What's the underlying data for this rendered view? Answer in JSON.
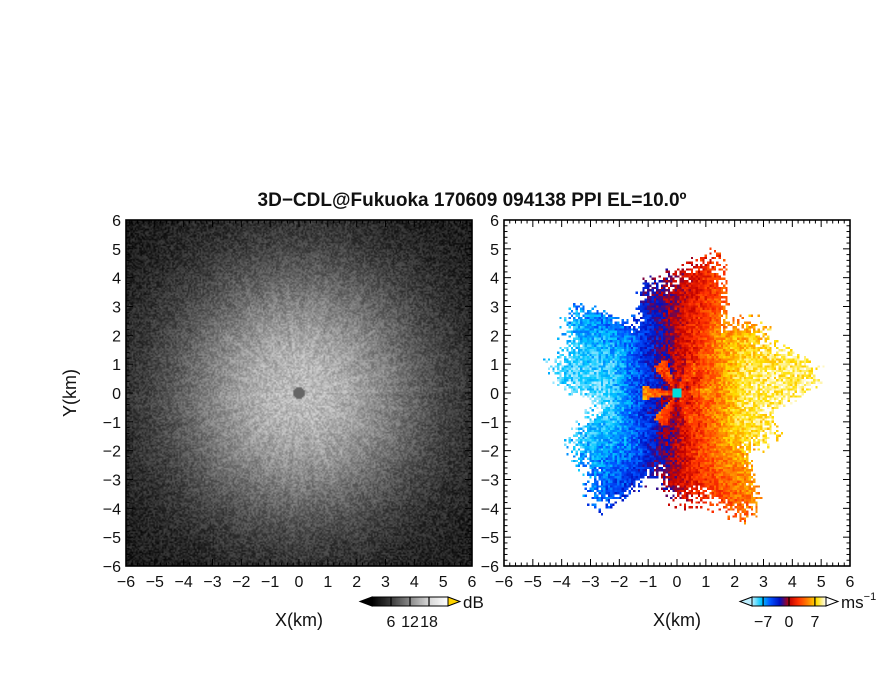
{
  "title": "3D−CDL@Fukuoka 170609 094138 PPI EL=10.0º",
  "chart_data": [
    {
      "type": "heatmap",
      "panel": "left",
      "field": "reflectivity",
      "xlabel": "X(km)",
      "ylabel": "Y(km)",
      "xlim": [
        -6,
        6
      ],
      "ylim": [
        -6,
        6
      ],
      "xticks": [
        "−6",
        "−5",
        "−4",
        "−3",
        "−2",
        "−1",
        "0",
        "1",
        "2",
        "3",
        "4",
        "5",
        "6"
      ],
      "yticks": [
        "−6",
        "−5",
        "−4",
        "−3",
        "−2",
        "−1",
        "0",
        "1",
        "2",
        "3",
        "4",
        "5",
        "6"
      ],
      "colorbar": {
        "unit": "dB",
        "range": [
          0,
          24
        ],
        "tick_values": [
          6,
          12,
          18
        ],
        "tick_labels": [
          "6",
          "12",
          "18"
        ],
        "colors": [
          "#000000",
          "#ffffff"
        ],
        "extend_color": "#ffd400"
      },
      "echo_radius_km": 4.5,
      "center_blank_radius_km": 0.2
    },
    {
      "type": "heatmap",
      "panel": "right",
      "field": "doppler_velocity",
      "xlabel": "X(km)",
      "ylabel": "",
      "xlim": [
        -6,
        6
      ],
      "ylim": [
        -6,
        6
      ],
      "xticks": [
        "−6",
        "−5",
        "−4",
        "−3",
        "−2",
        "−1",
        "0",
        "1",
        "2",
        "3",
        "4",
        "5",
        "6"
      ],
      "yticks": [
        "−6",
        "−5",
        "−4",
        "−3",
        "−2",
        "−1",
        "0",
        "1",
        "2",
        "3",
        "4",
        "5",
        "6"
      ],
      "colorbar": {
        "unit": "ms",
        "unit_exponent": "−1",
        "range": [
          -10,
          10
        ],
        "tick_values": [
          -7,
          0,
          7
        ],
        "tick_labels": [
          "−7",
          "0",
          "7"
        ],
        "colors": [
          "#bfefff",
          "#00c8ff",
          "#0050ff",
          "#0010c0",
          "#c00000",
          "#ff3000",
          "#ff8000",
          "#ffe000",
          "#ffffff"
        ]
      },
      "echo_radius_km": 4.6,
      "center_blank_radius_km": 0.2
    }
  ]
}
